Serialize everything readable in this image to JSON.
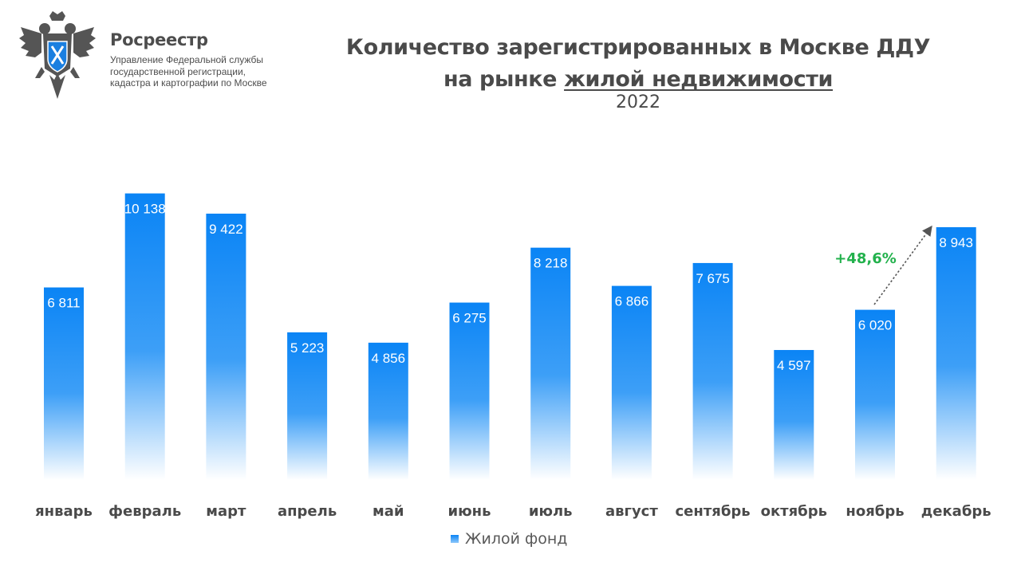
{
  "brand": {
    "name": "Росреестр",
    "subtitle_lines": [
      "Управление Федеральной службы",
      "государственной регистрации,",
      "кадастра и картографии по Москве"
    ]
  },
  "header": {
    "title_line1": "Количество зарегистрированных в Москве ДДУ",
    "title_line2_prefix": "на рынке ",
    "title_line2_underlined": "жилой недвижимости",
    "year": "2022"
  },
  "annotation": {
    "text": "+48,6%",
    "color": "#22b14c"
  },
  "legend": {
    "label": "Жилой фонд"
  },
  "colors": {
    "bar_top": "#0a84f5",
    "bar_bottom": "#ffffff",
    "text": "#4a4a4a",
    "value_label": "#ffffff"
  },
  "chart_data": {
    "type": "bar",
    "categories": [
      "январь",
      "февраль",
      "март",
      "апрель",
      "май",
      "июнь",
      "июль",
      "август",
      "сентябрь",
      "октябрь",
      "ноябрь",
      "декабрь"
    ],
    "series": [
      {
        "name": "Жилой фонд",
        "values": [
          6811,
          10138,
          9422,
          5223,
          4856,
          6275,
          8218,
          6866,
          7675,
          4597,
          6020,
          8943
        ],
        "labels": [
          "6 811",
          "10 138",
          "9 422",
          "5 223",
          "4 856",
          "6 275",
          "8 218",
          "6 866",
          "7 675",
          "4 597",
          "6 020",
          "8 943"
        ]
      }
    ],
    "legend_position": "bottom",
    "grid": false
  }
}
